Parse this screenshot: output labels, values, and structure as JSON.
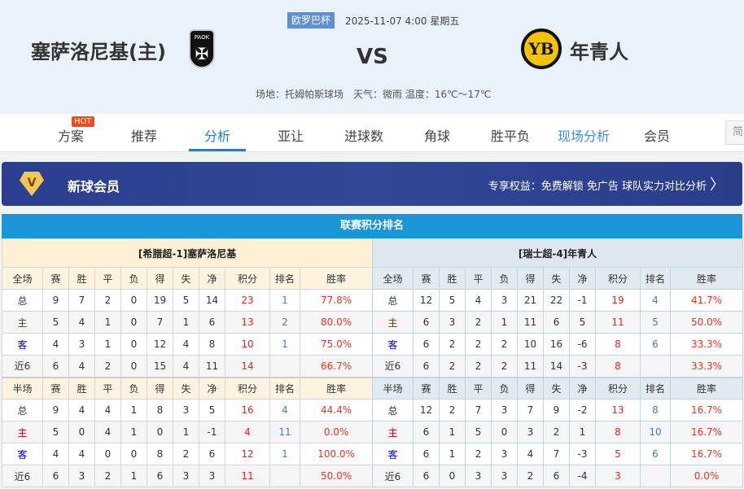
{
  "match": {
    "league": "欧罗巴杯",
    "datetime": "2025-11-07 4:00 星期五",
    "home": "塞萨洛尼基(主)",
    "away": "年青人",
    "vs": "VS",
    "venue": "场地：托姆帕斯球场　天气：微雨 温度：16℃～17℃",
    "home_logo": "PAOK",
    "away_logo": "YB"
  },
  "nav": {
    "items": [
      "方案",
      "推荐",
      "分析",
      "亚让",
      "进球数",
      "角球",
      "胜平负",
      "现场分析",
      "会员"
    ],
    "active": "分析",
    "hot": "HOT",
    "lang": "简"
  },
  "banner": {
    "title": "新球会员",
    "benefits": "专享权益：免费解锁 免广告 球队实力对比分析",
    "icon": "diamond-v-icon"
  },
  "standings": {
    "title": "联赛积分排名",
    "columns_full": [
      "全场",
      "赛",
      "胜",
      "平",
      "负",
      "得",
      "失",
      "净",
      "积分",
      "排名",
      "胜率"
    ],
    "columns_half": [
      "半场",
      "赛",
      "胜",
      "平",
      "负",
      "得",
      "失",
      "净",
      "积分",
      "排名",
      "胜率"
    ],
    "home": {
      "caption": "[希腊超-1]塞萨洛尼基",
      "full": [
        [
          "总",
          "9",
          "7",
          "2",
          "0",
          "19",
          "5",
          "14",
          "23",
          "1",
          "77.8%"
        ],
        [
          "主",
          "5",
          "4",
          "1",
          "0",
          "7",
          "1",
          "6",
          "13",
          "2",
          "80.0%"
        ],
        [
          "客",
          "4",
          "3",
          "1",
          "0",
          "12",
          "4",
          "8",
          "10",
          "1",
          "75.0%"
        ],
        [
          "近6",
          "6",
          "4",
          "2",
          "0",
          "15",
          "4",
          "11",
          "14",
          "",
          "66.7%"
        ]
      ],
      "half": [
        [
          "总",
          "9",
          "4",
          "4",
          "1",
          "8",
          "3",
          "5",
          "16",
          "4",
          "44.4%"
        ],
        [
          "主",
          "5",
          "0",
          "4",
          "1",
          "0",
          "1",
          "-1",
          "4",
          "11",
          "0.0%"
        ],
        [
          "客",
          "4",
          "4",
          "0",
          "0",
          "8",
          "2",
          "6",
          "12",
          "1",
          "100.0%"
        ],
        [
          "近6",
          "6",
          "3",
          "2",
          "1",
          "6",
          "3",
          "3",
          "11",
          "",
          "50.0%"
        ]
      ]
    },
    "away": {
      "caption": "[瑞士超-4]年青人",
      "full": [
        [
          "总",
          "12",
          "5",
          "4",
          "3",
          "21",
          "22",
          "-1",
          "19",
          "4",
          "41.7%"
        ],
        [
          "主",
          "6",
          "3",
          "2",
          "1",
          "11",
          "6",
          "5",
          "11",
          "5",
          "50.0%"
        ],
        [
          "客",
          "6",
          "2",
          "2",
          "2",
          "10",
          "16",
          "-6",
          "8",
          "6",
          "33.3%"
        ],
        [
          "近6",
          "6",
          "2",
          "2",
          "2",
          "11",
          "14",
          "-3",
          "8",
          "",
          "33.3%"
        ]
      ],
      "half": [
        [
          "总",
          "12",
          "2",
          "7",
          "3",
          "7",
          "9",
          "-2",
          "13",
          "8",
          "16.7%"
        ],
        [
          "主",
          "6",
          "1",
          "5",
          "0",
          "3",
          "2",
          "1",
          "8",
          "10",
          "16.7%"
        ],
        [
          "客",
          "6",
          "1",
          "2",
          "3",
          "4",
          "7",
          "-3",
          "5",
          "6",
          "16.7%"
        ],
        [
          "近6",
          "6",
          "0",
          "3",
          "3",
          "2",
          "6",
          "-4",
          "3",
          "",
          "0.0%"
        ]
      ]
    }
  },
  "colors": {
    "accent": "#1a7ee0",
    "title_bar": "#1a96d6",
    "banner": "#2a3f8f",
    "points": "#ee2222",
    "rank": "#3b7fd4"
  }
}
